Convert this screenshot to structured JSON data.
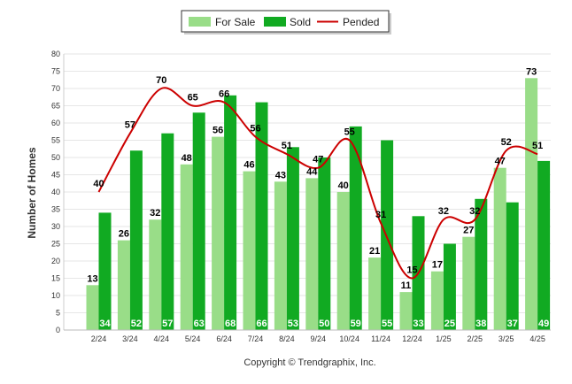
{
  "chart_data": {
    "type": "bar",
    "categories": [
      "2/24",
      "3/24",
      "4/24",
      "5/24",
      "6/24",
      "7/24",
      "8/24",
      "9/24",
      "10/24",
      "11/24",
      "12/24",
      "1/25",
      "2/25",
      "3/25",
      "4/25"
    ],
    "series": [
      {
        "name": "For Sale",
        "type": "bar",
        "color": "#99dd88",
        "values": [
          13,
          26,
          32,
          48,
          56,
          46,
          43,
          44,
          40,
          21,
          11,
          17,
          27,
          47,
          73
        ]
      },
      {
        "name": "Sold",
        "type": "bar",
        "color": "#11aa22",
        "values": [
          34,
          52,
          57,
          63,
          68,
          66,
          53,
          50,
          59,
          55,
          33,
          25,
          38,
          37,
          49
        ]
      },
      {
        "name": "Pended",
        "type": "line",
        "color": "#cc0000",
        "values": [
          40,
          57,
          70,
          65,
          66,
          56,
          51,
          47,
          55,
          31,
          15,
          32,
          32,
          52,
          51
        ]
      }
    ],
    "title": "",
    "xlabel": "",
    "ylabel": "Number of Homes",
    "ylim": [
      0,
      80
    ],
    "yticks": [
      0,
      5,
      10,
      15,
      20,
      25,
      30,
      35,
      40,
      45,
      50,
      55,
      60,
      65,
      70,
      75,
      80
    ],
    "grid": true,
    "legend": "top-center",
    "footer": "Copyright © Trendgraphix, Inc."
  }
}
